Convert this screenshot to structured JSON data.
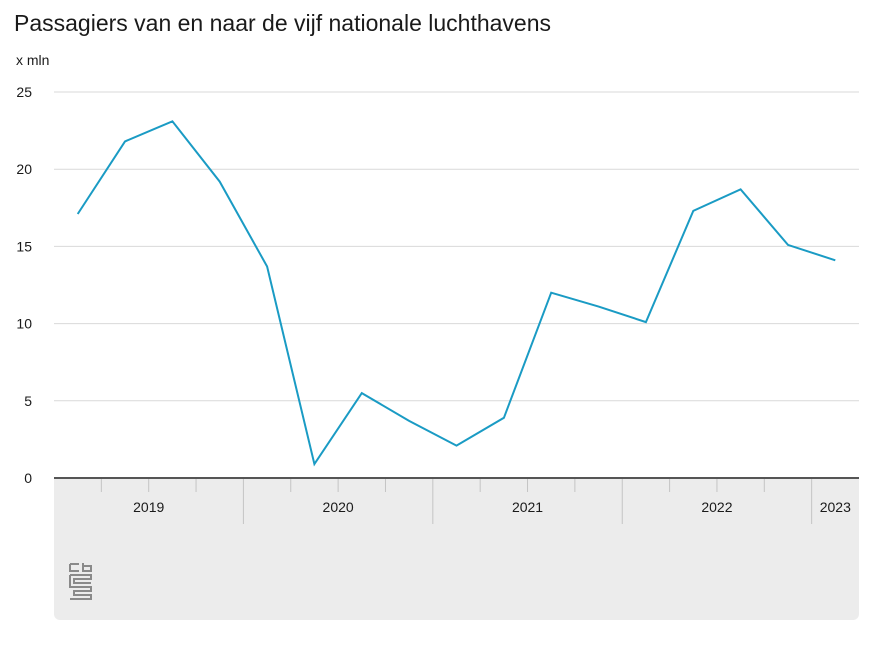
{
  "title": "Passagiers van en naar de vijf nationale luchthavens",
  "unit_label": "x mln",
  "chart_data": {
    "type": "line",
    "title": "Passagiers van en naar de vijf nationale luchthavens",
    "ylabel": "x mln",
    "xlabel": "",
    "ylim": [
      0,
      25
    ],
    "yticks": [
      "0",
      "5",
      "10",
      "15",
      "20",
      "25"
    ],
    "year_labels": [
      "2019",
      "2020",
      "2021",
      "2022",
      "2023"
    ],
    "x": [
      "2019 Q1",
      "2019 Q2",
      "2019 Q3",
      "2019 Q4",
      "2020 Q1",
      "2020 Q2",
      "2020 Q3",
      "2020 Q4",
      "2021 Q1",
      "2021 Q2",
      "2021 Q3",
      "2021 Q4",
      "2022 Q1",
      "2022 Q2",
      "2022 Q3",
      "2022 Q4",
      "2023 Q1"
    ],
    "series": [
      {
        "values": [
          17.1,
          21.8,
          23.1,
          19.2,
          13.7,
          0.9,
          5.5,
          3.7,
          2.1,
          3.9,
          12.0,
          11.1,
          10.1,
          17.3,
          18.7,
          15.1,
          14.1
        ]
      }
    ],
    "grid": true,
    "line_color": "#1a9bc4",
    "gridline_color": "#d9d9d9",
    "axis_color": "#555555"
  },
  "logo_name": "cbs-logo-icon"
}
